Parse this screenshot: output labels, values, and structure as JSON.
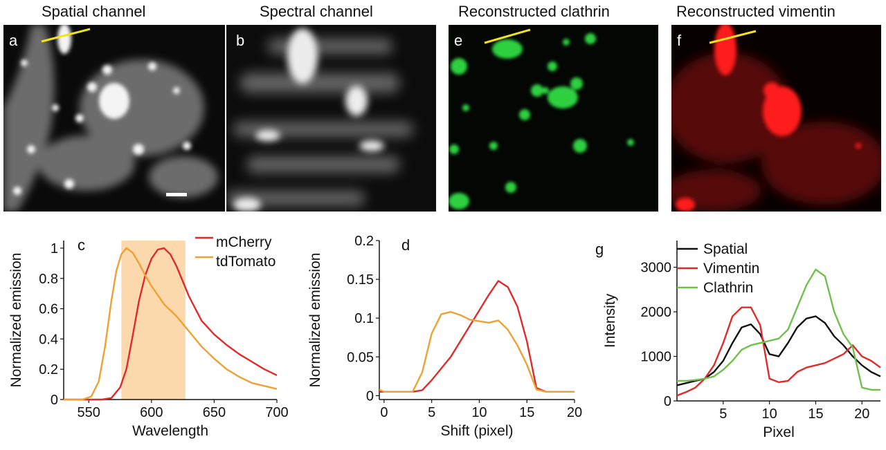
{
  "figure": {
    "panels": [
      {
        "title": "Spatial channel",
        "label": "a",
        "tint": "#ffffff"
      },
      {
        "title": "Spectral channel",
        "label": "b",
        "tint": "#ffffff"
      },
      {
        "title": "Reconstructed clathrin",
        "label": "e",
        "tint": "#2fd040"
      },
      {
        "title": "Reconstructed vimentin",
        "label": "f",
        "tint": "#ff1a1a"
      }
    ],
    "line_color": "#f2e21a",
    "band_color": "#fbd9ad"
  },
  "chart_data": [
    {
      "id": "c",
      "type": "line",
      "label": "c",
      "xlabel": "Wavelength",
      "ylabel": "Normalized emission",
      "xlim": [
        530,
        700
      ],
      "ylim": [
        0,
        1.05
      ],
      "xticks": [
        550,
        600,
        650,
        700
      ],
      "yticks": [
        0,
        0.2,
        0.4,
        0.6,
        0.8,
        1
      ],
      "yticklabels": [
        "0",
        "0.2",
        "0.4",
        "0.6",
        "0.8",
        "1"
      ],
      "shaded_band": [
        576,
        627
      ],
      "legend": "top-right",
      "series": [
        {
          "name": "mCherry",
          "color": "#e02a2a",
          "x": [
            530,
            560,
            568,
            575,
            580,
            585,
            590,
            595,
            600,
            605,
            610,
            615,
            620,
            625,
            630,
            640,
            650,
            660,
            670,
            680,
            690,
            700
          ],
          "y": [
            0,
            0,
            0.01,
            0.08,
            0.2,
            0.42,
            0.65,
            0.82,
            0.93,
            0.99,
            1.0,
            0.96,
            0.88,
            0.78,
            0.68,
            0.52,
            0.43,
            0.36,
            0.3,
            0.25,
            0.2,
            0.16
          ]
        },
        {
          "name": "tdTomato",
          "color": "#f0a030",
          "x": [
            530,
            545,
            552,
            558,
            563,
            568,
            572,
            576,
            580,
            585,
            590,
            595,
            600,
            610,
            620,
            630,
            640,
            650,
            660,
            670,
            680,
            690,
            700
          ],
          "y": [
            0,
            0,
            0.02,
            0.12,
            0.35,
            0.65,
            0.85,
            0.96,
            1.0,
            0.97,
            0.9,
            0.82,
            0.75,
            0.63,
            0.55,
            0.45,
            0.35,
            0.27,
            0.2,
            0.15,
            0.11,
            0.09,
            0.07
          ]
        }
      ]
    },
    {
      "id": "d",
      "type": "line",
      "label": "d",
      "xlabel": "Shift (pixel)",
      "ylabel": "Normalized emission",
      "xlim": [
        -0.5,
        20
      ],
      "ylim": [
        -0.005,
        0.2
      ],
      "xticks": [
        0,
        5,
        10,
        15,
        20
      ],
      "yticks": [
        0,
        0.05,
        0.1,
        0.15,
        0.2
      ],
      "yticklabels": [
        "0",
        "0.05",
        "0.1",
        "0.15",
        "0.2"
      ],
      "series": [
        {
          "color": "#e02a2a",
          "x": [
            -0.5,
            0,
            1,
            2,
            3,
            4,
            5,
            6,
            7,
            8,
            9,
            10,
            11,
            12,
            13,
            14,
            15,
            16,
            17,
            18,
            19,
            20
          ],
          "y": [
            0.005,
            0.005,
            0.005,
            0.005,
            0.005,
            0.007,
            0.02,
            0.035,
            0.05,
            0.07,
            0.09,
            0.11,
            0.13,
            0.148,
            0.14,
            0.115,
            0.07,
            0.01,
            0.005,
            0.005,
            0.005,
            0.005
          ]
        },
        {
          "color": "#f0a030",
          "x": [
            -0.5,
            0,
            1,
            2,
            3,
            4,
            5,
            6,
            7,
            8,
            9,
            10,
            11,
            12,
            13,
            14,
            15,
            16,
            17,
            18,
            19,
            20
          ],
          "y": [
            0.008,
            0.005,
            0.005,
            0.005,
            0.005,
            0.03,
            0.08,
            0.105,
            0.108,
            0.104,
            0.098,
            0.096,
            0.094,
            0.097,
            0.085,
            0.065,
            0.04,
            0.008,
            0.005,
            0.005,
            0.005,
            0.005
          ]
        }
      ]
    },
    {
      "id": "g",
      "type": "line",
      "label": "g",
      "xlabel": "Pixel",
      "ylabel": "Intensity",
      "xlim": [
        0,
        22
      ],
      "ylim": [
        0,
        3600
      ],
      "xticks": [
        5,
        10,
        15,
        20
      ],
      "yticks": [
        0,
        1000,
        2000,
        3000
      ],
      "yticklabels": [
        "0",
        "1000",
        "2000",
        "3000"
      ],
      "legend": "top-left",
      "series": [
        {
          "name": "Spatial",
          "color": "#111111",
          "x": [
            0,
            1,
            2,
            3,
            4,
            5,
            6,
            7,
            8,
            9,
            10,
            11,
            12,
            13,
            14,
            15,
            16,
            17,
            18,
            19,
            20,
            21,
            22
          ],
          "y": [
            350,
            400,
            450,
            500,
            650,
            900,
            1300,
            1650,
            1720,
            1500,
            1050,
            1000,
            1300,
            1650,
            1850,
            1900,
            1750,
            1450,
            1250,
            1000,
            800,
            650,
            550
          ]
        },
        {
          "name": "Vimentin",
          "color": "#e02a2a",
          "x": [
            0,
            1,
            2,
            3,
            4,
            5,
            6,
            7,
            8,
            9,
            10,
            11,
            12,
            13,
            14,
            15,
            16,
            17,
            18,
            19,
            20,
            21,
            22
          ],
          "y": [
            120,
            200,
            300,
            500,
            800,
            1300,
            1900,
            2100,
            2100,
            1700,
            500,
            420,
            450,
            650,
            750,
            800,
            850,
            950,
            1050,
            1250,
            1000,
            900,
            750
          ]
        },
        {
          "name": "Clathrin",
          "color": "#6fc04a",
          "x": [
            0,
            1,
            2,
            3,
            4,
            5,
            6,
            7,
            8,
            9,
            10,
            11,
            12,
            13,
            14,
            15,
            16,
            17,
            18,
            19,
            20,
            21,
            22
          ],
          "y": [
            450,
            450,
            470,
            500,
            550,
            700,
            900,
            1150,
            1250,
            1300,
            1350,
            1400,
            1600,
            2100,
            2600,
            2950,
            2800,
            2000,
            1500,
            1200,
            300,
            250,
            250
          ]
        }
      ]
    }
  ]
}
